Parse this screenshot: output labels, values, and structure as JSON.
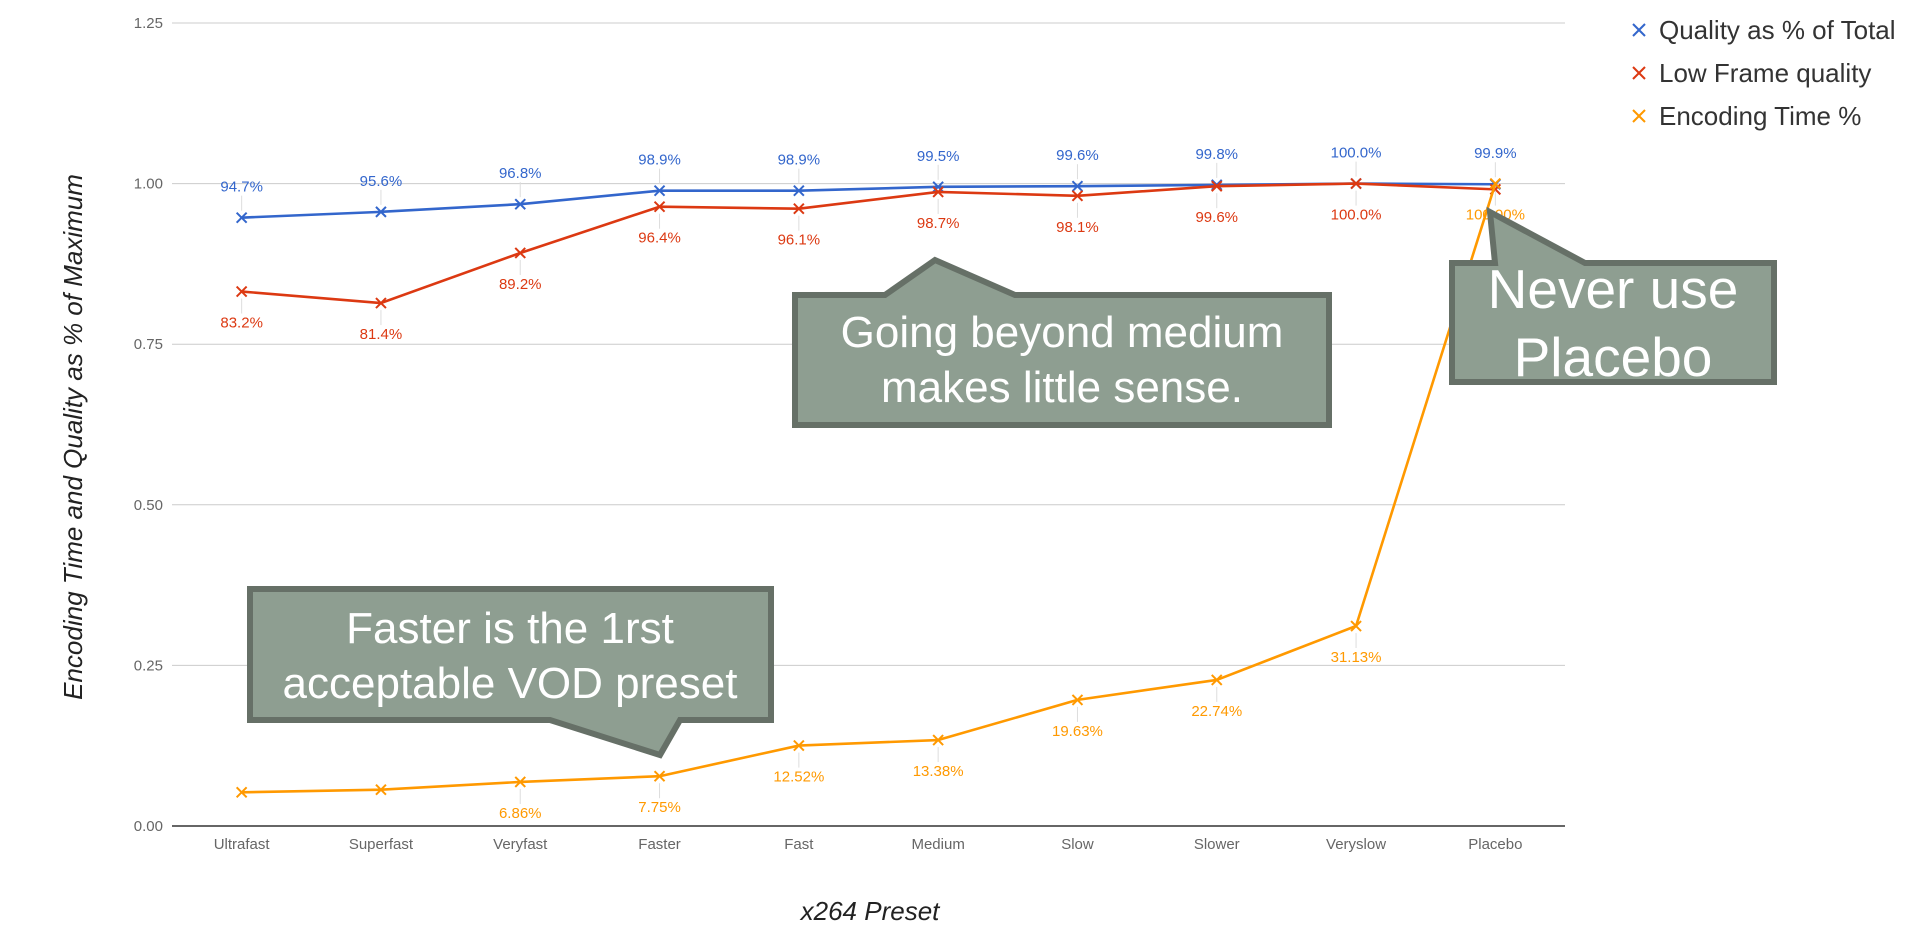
{
  "chart_data": {
    "type": "line",
    "categories": [
      "Ultrafast",
      "Superfast",
      "Veryfast",
      "Faster",
      "Fast",
      "Medium",
      "Slow",
      "Slower",
      "Veryslow",
      "Placebo"
    ],
    "xlabel": "x264 Preset",
    "ylabel": "Encoding Time and Quality as % of Maximum",
    "ylim": [
      0,
      1.25
    ],
    "yticks": [
      "0.00",
      "0.25",
      "0.50",
      "0.75",
      "1.00",
      "1.25"
    ],
    "grid": true,
    "legend_position": "top-right",
    "series": [
      {
        "name": "Quality as % of Total",
        "color": "#3366cc",
        "values": [
          0.947,
          0.956,
          0.968,
          0.989,
          0.989,
          0.995,
          0.996,
          0.998,
          1.0,
          0.999
        ],
        "labels": [
          "94.7%",
          "95.6%",
          "96.8%",
          "98.9%",
          "98.9%",
          "99.5%",
          "99.6%",
          "99.8%",
          "100.0%",
          "99.9%"
        ]
      },
      {
        "name": "Low Frame quality",
        "color": "#dc3912",
        "values": [
          0.832,
          0.814,
          0.892,
          0.964,
          0.961,
          0.987,
          0.981,
          0.996,
          1.0,
          0.991
        ],
        "labels": [
          "83.2%",
          "81.4%",
          "89.2%",
          "96.4%",
          "96.1%",
          "98.7%",
          "98.1%",
          "99.6%",
          "100.0%",
          ""
        ]
      },
      {
        "name": "Encoding Time %",
        "color": "#ff9900",
        "values": [
          0.0525,
          0.0565,
          0.0686,
          0.0775,
          0.1252,
          0.1338,
          0.1963,
          0.2274,
          0.3113,
          1.0
        ],
        "labels": [
          "",
          "",
          "6.86%",
          "7.75%",
          "12.52%",
          "13.38%",
          "19.63%",
          "22.74%",
          "31.13%",
          "100.00%"
        ]
      }
    ],
    "annotations": [
      {
        "lines": [
          "Going beyond medium",
          "makes little sense."
        ]
      },
      {
        "lines": [
          "Faster is the 1rst",
          "acceptable VOD preset"
        ]
      },
      {
        "lines": [
          "Never use",
          "Placebo"
        ]
      }
    ],
    "callout_color": "#8e9e91",
    "callout_border": "#667067"
  }
}
